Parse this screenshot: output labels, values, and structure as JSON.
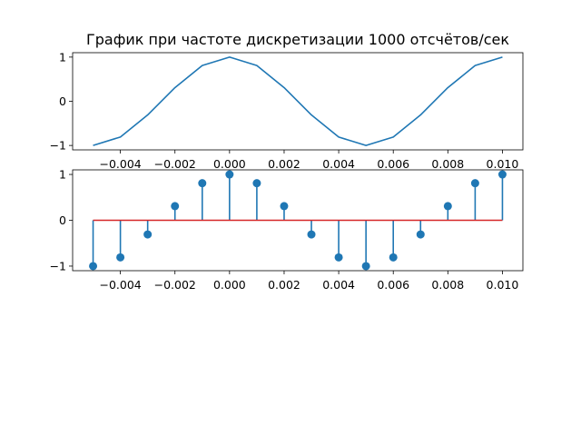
{
  "figure": {
    "title": "График при частоте дискретизации 1000 отсчётов/сек"
  },
  "chart_data": [
    {
      "type": "line",
      "title": "График при частоте дискретизации 1000 отсчётов/сек",
      "xlabel": "",
      "ylabel": "",
      "color": "#1f77b4",
      "xlim": [
        -0.00575,
        0.01075
      ],
      "ylim": [
        -1.1,
        1.1
      ],
      "xticks": [
        -0.004,
        -0.002,
        0.0,
        0.002,
        0.004,
        0.006,
        0.008,
        0.01
      ],
      "xtick_labels": [
        "−0.004",
        "−0.002",
        "0.000",
        "0.002",
        "0.004",
        "0.006",
        "0.008",
        "0.010"
      ],
      "yticks": [
        -1,
        0,
        1
      ],
      "ytick_labels": [
        "−1",
        "0",
        "1"
      ],
      "grid": false,
      "x": [
        -0.005,
        -0.004,
        -0.003,
        -0.002,
        -0.001,
        0.0,
        0.001,
        0.002,
        0.003,
        0.004,
        0.005,
        0.006,
        0.007,
        0.008,
        0.009,
        0.01
      ],
      "y": [
        -1.0,
        -0.809,
        -0.309,
        0.309,
        0.809,
        1.0,
        0.809,
        0.309,
        -0.309,
        -0.809,
        -1.0,
        -0.809,
        -0.309,
        0.309,
        0.809,
        1.0
      ]
    },
    {
      "type": "stem",
      "title": "",
      "xlabel": "",
      "ylabel": "",
      "color": "#1f77b4",
      "baseline_color": "#d62728",
      "xlim": [
        -0.00575,
        0.01075
      ],
      "ylim": [
        -1.1,
        1.1
      ],
      "xticks": [
        -0.004,
        -0.002,
        0.0,
        0.002,
        0.004,
        0.006,
        0.008,
        0.01
      ],
      "xtick_labels": [
        "−0.004",
        "−0.002",
        "0.000",
        "0.002",
        "0.004",
        "0.006",
        "0.008",
        "0.010"
      ],
      "yticks": [
        -1,
        0,
        1
      ],
      "ytick_labels": [
        "−1",
        "0",
        "1"
      ],
      "grid": false,
      "x": [
        -0.005,
        -0.004,
        -0.003,
        -0.002,
        -0.001,
        0.0,
        0.001,
        0.002,
        0.003,
        0.004,
        0.005,
        0.006,
        0.007,
        0.008,
        0.009,
        0.01
      ],
      "y": [
        -1.0,
        -0.809,
        -0.309,
        0.309,
        0.809,
        1.0,
        0.809,
        0.309,
        -0.309,
        -0.809,
        -1.0,
        -0.809,
        -0.309,
        0.309,
        0.809,
        1.0
      ]
    }
  ]
}
